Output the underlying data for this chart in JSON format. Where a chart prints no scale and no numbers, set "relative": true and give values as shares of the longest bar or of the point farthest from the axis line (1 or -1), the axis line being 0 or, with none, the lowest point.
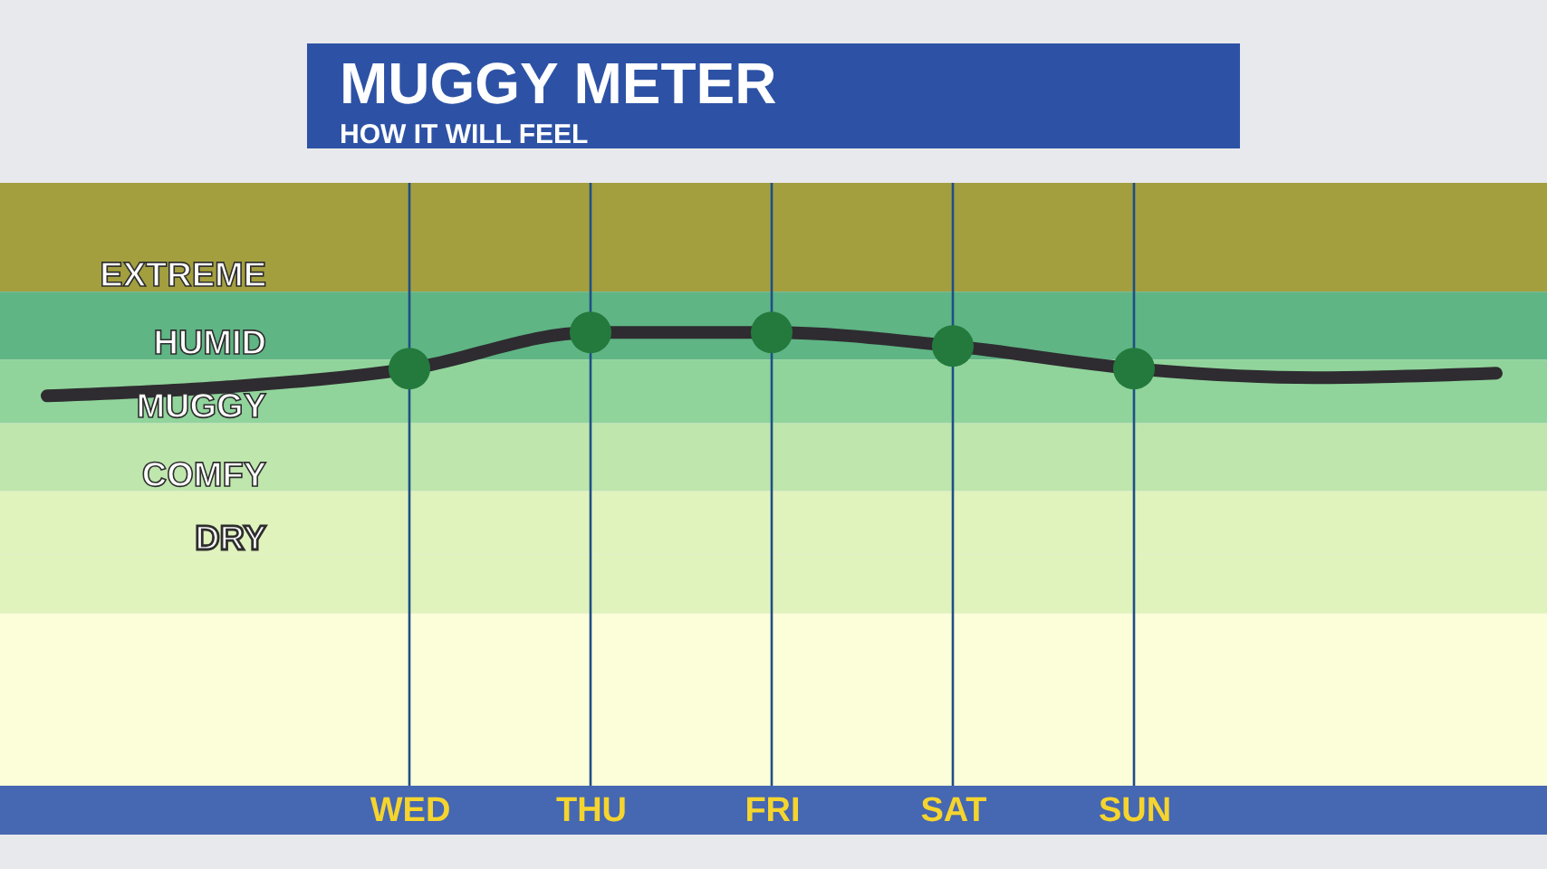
{
  "chart_data": {
    "type": "line",
    "title": "MUGGY METER",
    "subtitle": "HOW IT WILL FEEL",
    "categories": [
      null,
      null,
      "WED",
      "THU",
      "FRI",
      "SAT",
      "SUN",
      null,
      null
    ],
    "relative": true,
    "grid": "x",
    "marker": "circle",
    "series": [
      {
        "color": "#2e2c30",
        "marker": "none",
        "values": [
          0.86,
          0.88,
          0.92,
          1,
          1,
          0.97,
          0.92,
          0.9,
          0.91
        ]
      },
      {
        "type": "scatter",
        "color": "#237a3c",
        "values": [
          null,
          null,
          0.92,
          1,
          1,
          0.97,
          0.92,
          null,
          null
        ]
      }
    ],
    "bands": [
      {
        "axis": "y",
        "from": 1.09,
        "to": 1.33,
        "label": "EXTREME",
        "color": "#a39f3f"
      },
      {
        "axis": "y",
        "from": 0.94,
        "to": 1.09,
        "label": "HUMID",
        "color": "#5fb584"
      },
      {
        "axis": "y",
        "from": 0.8,
        "to": 0.94,
        "label": "MUGGY",
        "color": "#90d49b"
      },
      {
        "axis": "y",
        "from": 0.65,
        "to": 0.8,
        "label": "COMFY",
        "color": "#bee6ad"
      },
      {
        "axis": "y",
        "from": 0.51,
        "to": 0.65,
        "label": "DRY",
        "color": "#e0f3bd"
      },
      {
        "axis": "y",
        "from": 0.38,
        "to": 0.51,
        "color": "#e0f3bd"
      },
      {
        "axis": "y",
        "from": 0,
        "to": 0.38,
        "color": "#fcfdd9"
      }
    ]
  }
}
